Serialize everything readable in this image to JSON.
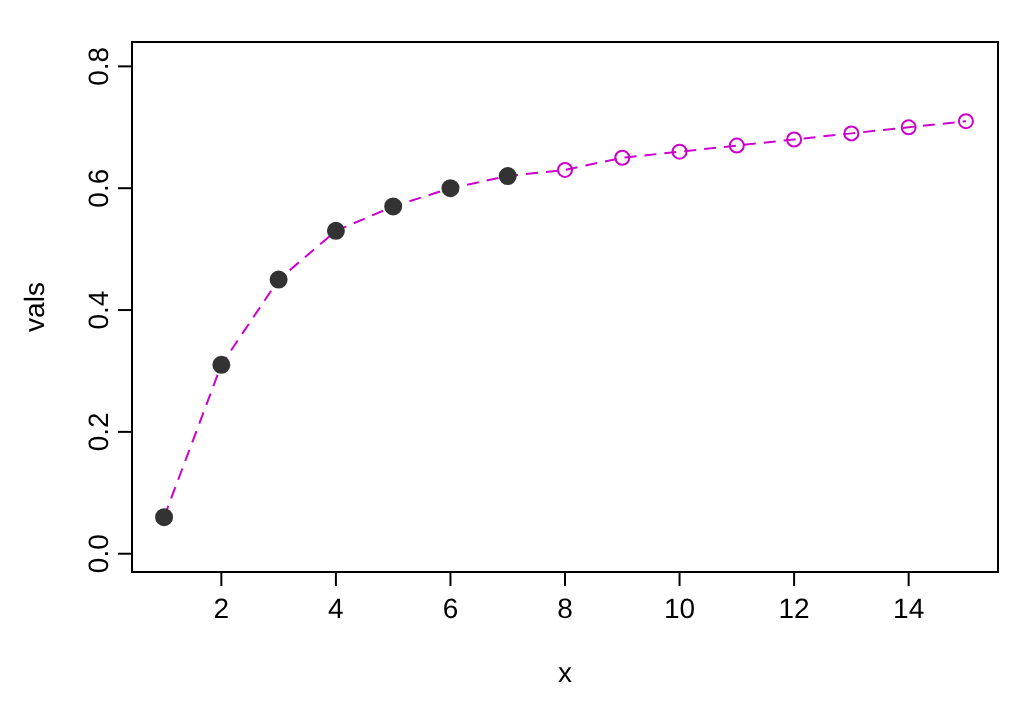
{
  "chart_data": {
    "type": "line",
    "xlabel": "x",
    "ylabel": "vals",
    "xlim": [
      0.44,
      15.56
    ],
    "ylim": [
      -0.03,
      0.84
    ],
    "xticks": [
      2,
      4,
      6,
      8,
      10,
      12,
      14
    ],
    "yticks": [
      {
        "value": 0,
        "label": "0.0"
      },
      0.2,
      0.4,
      0.6,
      0.8
    ],
    "grid": false,
    "line_style": "dashed",
    "marker": "circle",
    "series": [
      {
        "color": "#cc00cc",
        "x": [
          1,
          2,
          3,
          4,
          5,
          6,
          7,
          8,
          9,
          10,
          11,
          12,
          13,
          14,
          15
        ],
        "values": [
          0.06,
          0.31,
          0.45,
          0.53,
          0.57,
          0.6,
          0.62,
          0.63,
          0.65,
          0.66,
          0.67,
          0.68,
          0.69,
          0.7,
          0.71
        ]
      },
      {
        "type": "scatter",
        "color": "#333333",
        "x": [
          1,
          2,
          3,
          4,
          5,
          6,
          7
        ],
        "values": [
          0.06,
          0.31,
          0.45,
          0.53,
          0.57,
          0.6,
          0.62
        ]
      }
    ]
  }
}
